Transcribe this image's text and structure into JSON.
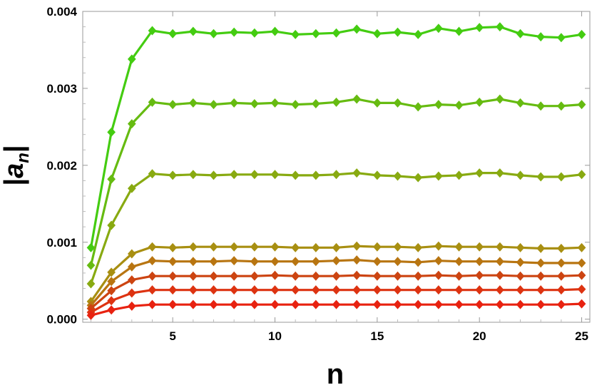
{
  "chart_data": {
    "type": "line",
    "xlabel": "n",
    "ylabel": "|a_n|",
    "xlim": [
      0.6,
      25.4
    ],
    "ylim": [
      -4e-05,
      0.004
    ],
    "x_ticks": [
      5,
      10,
      15,
      20,
      25
    ],
    "y_ticks": [
      0.0,
      0.001,
      0.002,
      0.003,
      0.004
    ],
    "y_tick_labels": [
      "0.000",
      "0.001",
      "0.002",
      "0.003",
      "0.004"
    ],
    "grid": false,
    "marker": "diamond",
    "x": [
      1,
      2,
      3,
      4,
      5,
      6,
      7,
      8,
      9,
      10,
      11,
      12,
      13,
      14,
      15,
      16,
      17,
      18,
      19,
      20,
      21,
      22,
      23,
      24,
      25
    ],
    "series": [
      {
        "color": "#44cc11",
        "values": [
          0.00093,
          0.00243,
          0.00338,
          0.00375,
          0.00371,
          0.00374,
          0.00371,
          0.00373,
          0.00372,
          0.00374,
          0.0037,
          0.00371,
          0.00372,
          0.00377,
          0.00371,
          0.00373,
          0.0037,
          0.00378,
          0.00374,
          0.00379,
          0.0038,
          0.00371,
          0.00367,
          0.00366,
          0.0037
        ]
      },
      {
        "color": "#66bb11",
        "values": [
          0.0007,
          0.00182,
          0.00254,
          0.00282,
          0.00279,
          0.00281,
          0.00279,
          0.00281,
          0.0028,
          0.00281,
          0.00279,
          0.0028,
          0.00282,
          0.00286,
          0.00281,
          0.00281,
          0.00276,
          0.00279,
          0.00278,
          0.00282,
          0.00286,
          0.00281,
          0.00277,
          0.00277,
          0.00279
        ]
      },
      {
        "color": "#88aa11",
        "values": [
          0.00046,
          0.00122,
          0.0017,
          0.00189,
          0.00187,
          0.00188,
          0.00187,
          0.00188,
          0.00188,
          0.00188,
          0.00187,
          0.00187,
          0.00188,
          0.0019,
          0.00187,
          0.00186,
          0.00184,
          0.00186,
          0.00187,
          0.0019,
          0.0019,
          0.00187,
          0.00185,
          0.00185,
          0.00188
        ]
      },
      {
        "color": "#a88f11",
        "values": [
          0.00023,
          0.00061,
          0.00085,
          0.00094,
          0.00093,
          0.00094,
          0.00094,
          0.00094,
          0.00094,
          0.00094,
          0.00093,
          0.00093,
          0.00093,
          0.00095,
          0.00094,
          0.00094,
          0.00093,
          0.00095,
          0.00094,
          0.00094,
          0.00094,
          0.00093,
          0.00092,
          0.00092,
          0.00093
        ]
      },
      {
        "color": "#b87511",
        "values": [
          0.00018,
          0.00049,
          0.00068,
          0.00076,
          0.00075,
          0.00075,
          0.00075,
          0.00076,
          0.00075,
          0.00075,
          0.00075,
          0.00075,
          0.00076,
          0.00077,
          0.00075,
          0.00075,
          0.00074,
          0.00076,
          0.00075,
          0.00075,
          0.00075,
          0.00074,
          0.00073,
          0.00073,
          0.00073
        ]
      },
      {
        "color": "#cc4411",
        "values": [
          0.00014,
          0.00037,
          0.00051,
          0.00056,
          0.00056,
          0.00056,
          0.00056,
          0.00056,
          0.00056,
          0.00057,
          0.00056,
          0.00056,
          0.00056,
          0.00057,
          0.00056,
          0.00056,
          0.00056,
          0.00057,
          0.00056,
          0.00057,
          0.00057,
          0.00056,
          0.00056,
          0.00056,
          0.00057
        ]
      },
      {
        "color": "#dd3311",
        "values": [
          9e-05,
          0.00024,
          0.00034,
          0.00038,
          0.00038,
          0.00038,
          0.00038,
          0.00038,
          0.00038,
          0.00038,
          0.00038,
          0.00038,
          0.00038,
          0.00038,
          0.00038,
          0.00038,
          0.00038,
          0.00038,
          0.00038,
          0.00038,
          0.00038,
          0.00038,
          0.00038,
          0.00038,
          0.00039
        ]
      },
      {
        "color": "#e82210",
        "values": [
          5e-05,
          0.00012,
          0.00017,
          0.00019,
          0.00019,
          0.00019,
          0.00019,
          0.00019,
          0.00019,
          0.00019,
          0.00019,
          0.00019,
          0.00019,
          0.00019,
          0.00019,
          0.00019,
          0.00019,
          0.00019,
          0.00019,
          0.00019,
          0.00019,
          0.00019,
          0.00019,
          0.00019,
          0.0002
        ]
      }
    ]
  }
}
